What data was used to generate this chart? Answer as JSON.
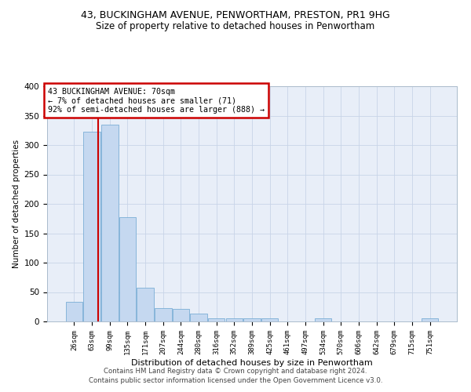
{
  "title_line1": "43, BUCKINGHAM AVENUE, PENWORTHAM, PRESTON, PR1 9HG",
  "title_line2": "Size of property relative to detached houses in Penwortham",
  "xlabel": "Distribution of detached houses by size in Penwortham",
  "ylabel": "Number of detached properties",
  "footer_line1": "Contains HM Land Registry data © Crown copyright and database right 2024.",
  "footer_line2": "Contains public sector information licensed under the Open Government Licence v3.0.",
  "bin_labels": [
    "26sqm",
    "63sqm",
    "99sqm",
    "135sqm",
    "171sqm",
    "207sqm",
    "244sqm",
    "280sqm",
    "316sqm",
    "352sqm",
    "389sqm",
    "425sqm",
    "461sqm",
    "497sqm",
    "534sqm",
    "570sqm",
    "606sqm",
    "642sqm",
    "679sqm",
    "715sqm",
    "751sqm"
  ],
  "bar_values": [
    33,
    323,
    335,
    177,
    57,
    23,
    22,
    13,
    6,
    5,
    5,
    5,
    0,
    0,
    5,
    0,
    0,
    0,
    0,
    0,
    5
  ],
  "bar_color": "#c5d8f0",
  "bar_edge_color": "#7aaed6",
  "property_line_bin_index": 1.35,
  "annotation_text_line1": "43 BUCKINGHAM AVENUE: 70sqm",
  "annotation_text_line2": "← 7% of detached houses are smaller (71)",
  "annotation_text_line3": "92% of semi-detached houses are larger (888) →",
  "annotation_box_color": "#ffffff",
  "annotation_box_edge_color": "#cc0000",
  "property_line_color": "#cc0000",
  "ylim": [
    0,
    400
  ],
  "yticks": [
    0,
    50,
    100,
    150,
    200,
    250,
    300,
    350,
    400
  ],
  "grid_color": "#c8d4e8",
  "bg_color": "#e8eef8",
  "fig_bg_color": "#ffffff"
}
